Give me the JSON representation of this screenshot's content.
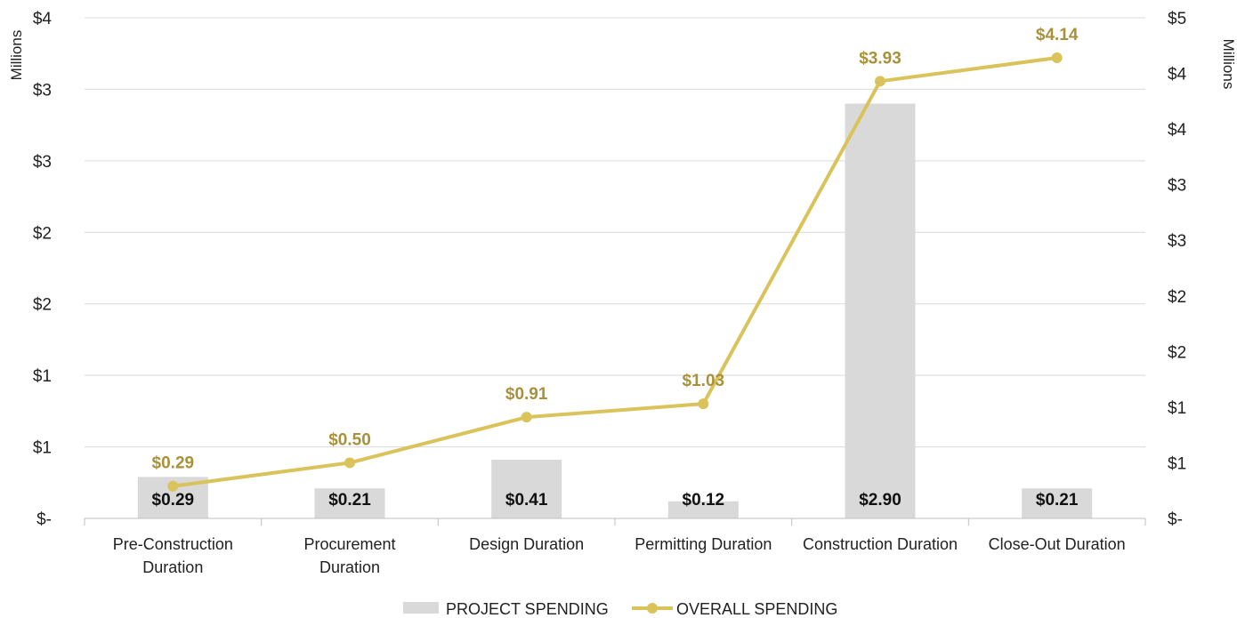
{
  "chart_data": {
    "type": "bar",
    "categories": [
      [
        "Pre-Construction",
        "Duration"
      ],
      [
        "Procurement",
        "Duration"
      ],
      [
        "Design Duration"
      ],
      [
        "Permitting Duration"
      ],
      [
        "Construction Duration"
      ],
      [
        "Close-Out Duration"
      ]
    ],
    "series": [
      {
        "name": "PROJECT SPENDING",
        "type": "bar",
        "axis": "left",
        "color": "#d9d9d9",
        "values": [
          0.29,
          0.21,
          0.41,
          0.12,
          2.9,
          0.21
        ],
        "labels": [
          "$0.29",
          "$0.21",
          "$0.41",
          "$0.12",
          "$2.90",
          "$0.21"
        ]
      },
      {
        "name": "OVERALL SPENDING",
        "type": "line",
        "axis": "right",
        "color": "#d9c35a",
        "label_color": "#a8913a",
        "values": [
          0.29,
          0.5,
          0.91,
          1.03,
          3.93,
          4.14
        ],
        "labels": [
          "$0.29",
          "$0.50",
          "$0.91",
          "$1.03",
          "$3.93",
          "$4.14"
        ]
      }
    ],
    "y_left": {
      "label": "Millions",
      "ylim": [
        0,
        3.5
      ],
      "ticks": [
        0,
        0.5,
        1,
        1.5,
        2,
        2.5,
        3,
        3.5
      ],
      "tick_labels": [
        "$-",
        "$1",
        "$1",
        "$2",
        "$2",
        "$3",
        "$3",
        "$4"
      ]
    },
    "y_right": {
      "label": "Millions",
      "ylim": [
        0,
        4.5
      ],
      "ticks": [
        0,
        0.5,
        1,
        1.5,
        2,
        2.5,
        3,
        3.5,
        4,
        4.5
      ],
      "tick_labels": [
        "$-",
        "$1",
        "$1",
        "$2",
        "$2",
        "$3",
        "$3",
        "$4",
        "$4",
        "$5"
      ]
    },
    "grid": true,
    "legend_position": "bottom-center"
  }
}
